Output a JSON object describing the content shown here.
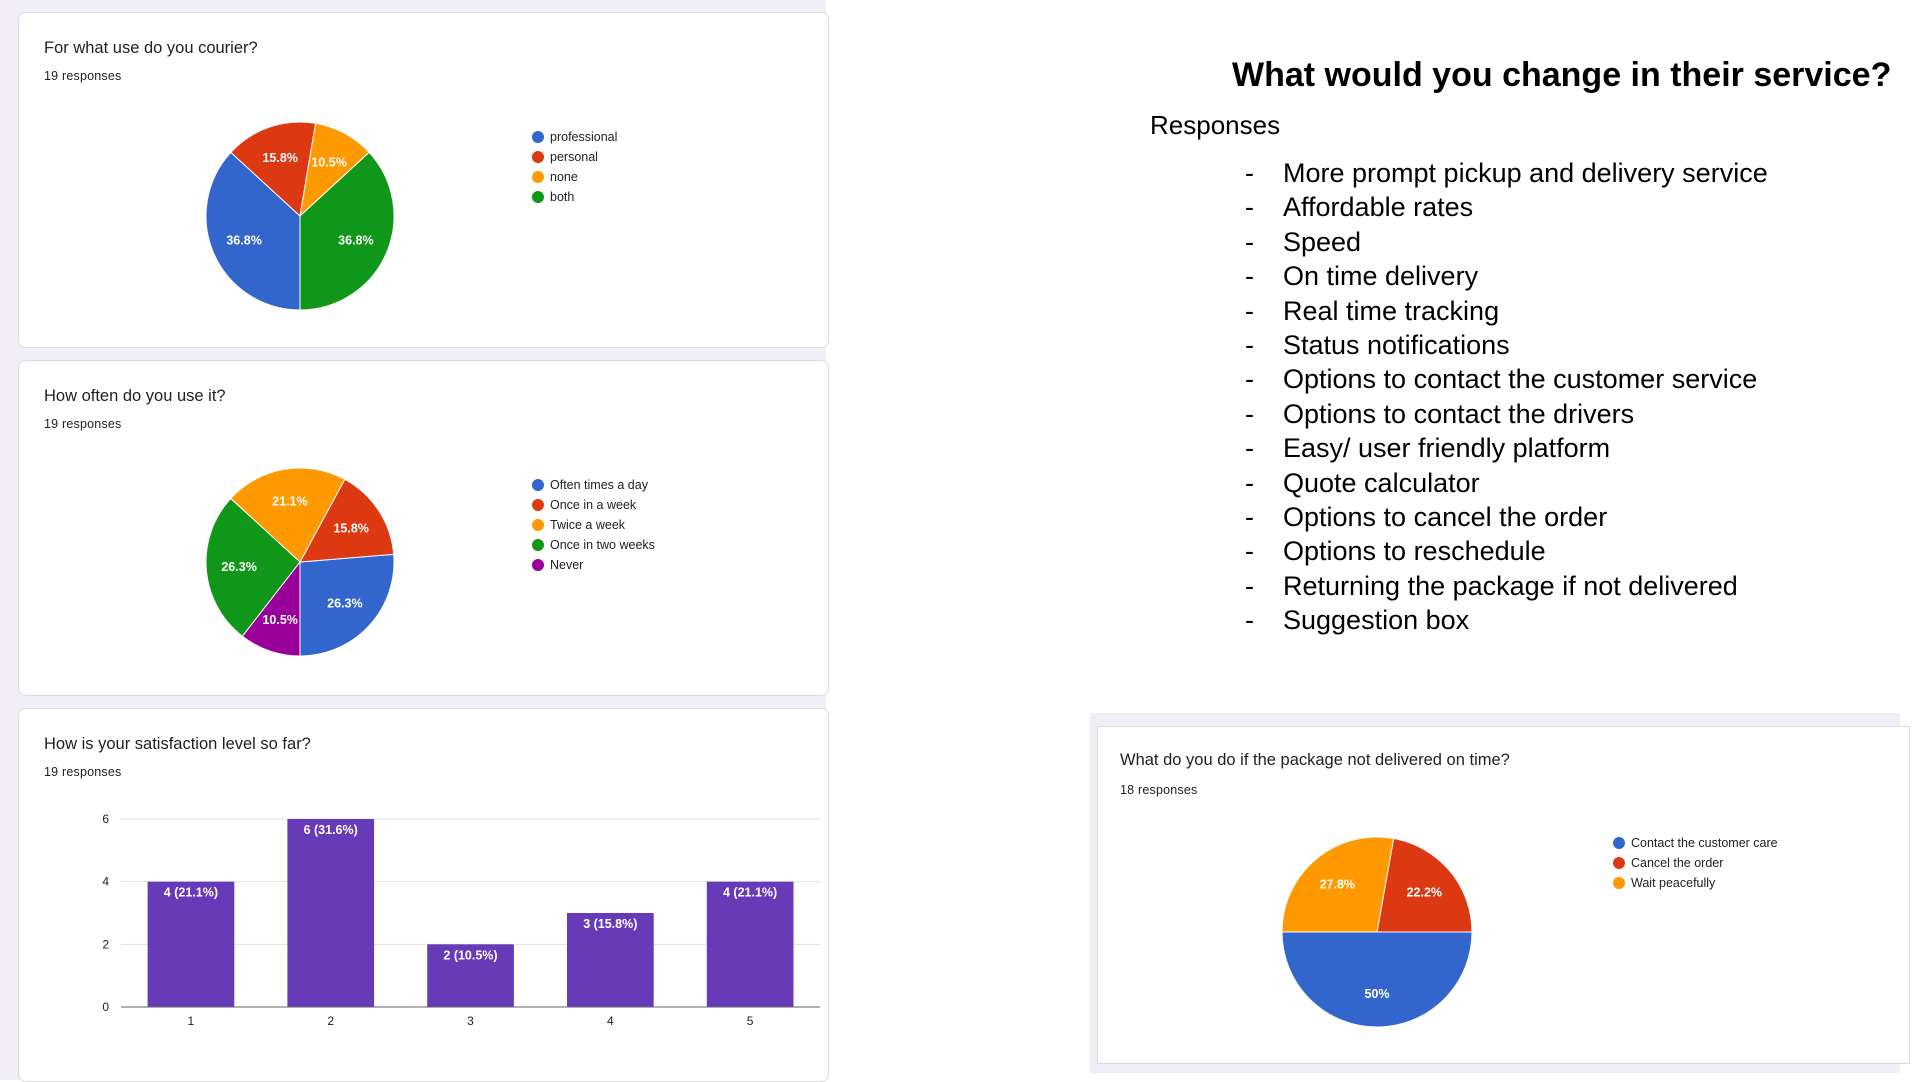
{
  "cards": [
    {
      "title": "For what use do you courier?",
      "responses": "19 responses",
      "chart_data": {
        "type": "pie",
        "labels": [
          "professional",
          "personal",
          "none",
          "both"
        ],
        "values": [
          36.8,
          15.8,
          10.5,
          36.8
        ],
        "value_labels": [
          "36.8%",
          "15.8%",
          "10.5%",
          "36.8%"
        ],
        "colors": [
          "#3366cc",
          "#dc3912",
          "#ff9900",
          "#109618"
        ],
        "legend_position": "right"
      }
    },
    {
      "title": "How often do you use it?",
      "responses": "19 responses",
      "chart_data": {
        "type": "pie",
        "labels": [
          "Often times a day",
          "Once in a week",
          "Twice a week",
          "Once in two weeks",
          "Never"
        ],
        "values": [
          26.3,
          15.8,
          21.1,
          26.3,
          10.5
        ],
        "value_labels": [
          "26.3%",
          "15.8%",
          "21.1%",
          "26.3%",
          "10.5%"
        ],
        "colors": [
          "#3366cc",
          "#dc3912",
          "#ff9900",
          "#109618",
          "#990099"
        ],
        "legend_position": "right"
      }
    },
    {
      "title": "How is your satisfaction level so far?",
      "responses": "19 responses",
      "chart_data": {
        "type": "bar",
        "categories": [
          "1",
          "2",
          "3",
          "4",
          "5"
        ],
        "values": [
          4,
          6,
          2,
          3,
          4
        ],
        "value_labels": [
          "4 (21.1%)",
          "6 (31.6%)",
          "2 (10.5%)",
          "3 (15.8%)",
          "4 (21.1%)"
        ],
        "yticks": [
          "0",
          "2",
          "4",
          "6"
        ],
        "ylim": [
          0,
          6
        ],
        "color": "#673ab7"
      }
    },
    {
      "title": "What do you do if the package not delivered on time?",
      "responses": "18 responses",
      "chart_data": {
        "type": "pie",
        "labels": [
          "Contact the customer care",
          "Cancel the order",
          "Wait peacefully"
        ],
        "values": [
          50,
          22.2,
          27.8
        ],
        "value_labels": [
          "50%",
          "22.2%",
          "27.8%"
        ],
        "colors": [
          "#3366cc",
          "#dc3912",
          "#ff9900"
        ],
        "legend_position": "right"
      }
    }
  ],
  "responses_panel": {
    "title": "What would you change in their service?",
    "heading": "Responses",
    "items": [
      "More prompt pickup and delivery service",
      "Affordable rates",
      "Speed",
      "On time delivery",
      "Real time tracking",
      "Status notifications",
      "Options to contact the customer service",
      "Options to contact the drivers",
      "Easy/ user friendly platform",
      "Quote calculator",
      "Options to cancel the order",
      "Options to reschedule",
      "Returning the package if not delivered",
      "Suggestion box"
    ]
  }
}
